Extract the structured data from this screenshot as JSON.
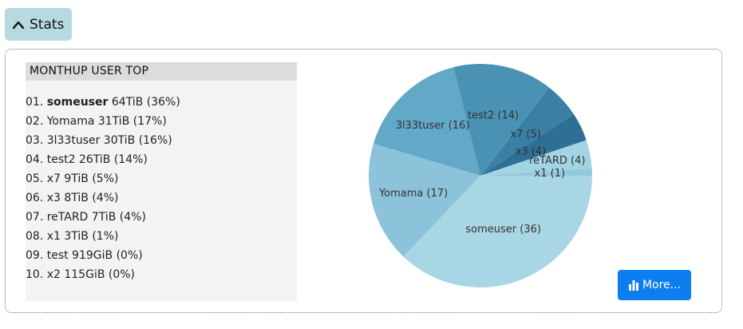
{
  "toggle": {
    "label": "Stats"
  },
  "toplist": {
    "title": "MONTHUP USER TOP",
    "items": [
      {
        "rank": "01.",
        "user": "someuser",
        "stat": "64TiB (36%)"
      },
      {
        "rank": "02.",
        "user": "Yomama",
        "stat": "31TiB (17%)"
      },
      {
        "rank": "03.",
        "user": "3l33tuser",
        "stat": "30TiB (16%)"
      },
      {
        "rank": "04.",
        "user": "test2",
        "stat": "26TiB (14%)"
      },
      {
        "rank": "05.",
        "user": "x7",
        "stat": "9TiB (5%)"
      },
      {
        "rank": "06.",
        "user": "x3",
        "stat": "8TiB (4%)"
      },
      {
        "rank": "07.",
        "user": "reTARD",
        "stat": "7TiB (4%)"
      },
      {
        "rank": "08.",
        "user": "x1",
        "stat": "3TiB (1%)"
      },
      {
        "rank": "09.",
        "user": "test",
        "stat": "919GiB (0%)"
      },
      {
        "rank": "10.",
        "user": "x2",
        "stat": "115GiB (0%)"
      }
    ]
  },
  "chart_data": {
    "type": "pie",
    "title": "",
    "slices": [
      {
        "label": "someuser",
        "value": 36,
        "color": "#a9d6e4"
      },
      {
        "label": "Yomama",
        "value": 17,
        "color": "#8cc3db"
      },
      {
        "label": "3l33tuser",
        "value": 16,
        "color": "#62a8c7"
      },
      {
        "label": "test2",
        "value": 14,
        "color": "#4a92b4"
      },
      {
        "label": "x7",
        "value": 5,
        "color": "#3a80a5"
      },
      {
        "label": "x3",
        "value": 4,
        "color": "#2e6f95"
      },
      {
        "label": "reTARD",
        "value": 4,
        "color": "#a3d4e3"
      },
      {
        "label": "x1",
        "value": 1,
        "color": "#94c8da"
      }
    ]
  },
  "more_button": {
    "label": "More..."
  },
  "colors": {
    "accent": "#0d7ef0",
    "toggle_bg": "#b7d9e0"
  }
}
